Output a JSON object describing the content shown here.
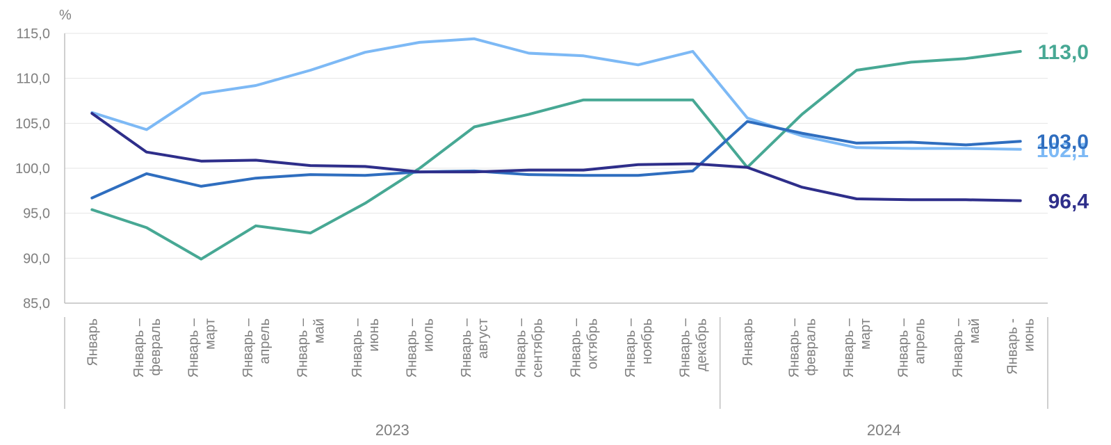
{
  "chart_data": {
    "type": "line",
    "ylabel": "%",
    "ylim": [
      85,
      115
    ],
    "yticks": [
      "85,0",
      "90,0",
      "95,0",
      "100,0",
      "105,0",
      "110,0",
      "115,0"
    ],
    "grid": true,
    "categories": [
      [
        "Январь"
      ],
      [
        "Январь –",
        "февраль"
      ],
      [
        "Январь –",
        "март"
      ],
      [
        "Январь –",
        "апрель"
      ],
      [
        "Январь –",
        "май"
      ],
      [
        "Январь –",
        "июнь"
      ],
      [
        "Январь –",
        "июль"
      ],
      [
        "Январь –",
        "август"
      ],
      [
        "Январь –",
        "сентябрь"
      ],
      [
        "Январь –",
        "октябрь"
      ],
      [
        "Январь –",
        "ноябрь"
      ],
      [
        "Январь –",
        "декабрь"
      ],
      [
        "Январь"
      ],
      [
        "Январь –",
        "февраль"
      ],
      [
        "Январь –",
        "март"
      ],
      [
        "Январь –",
        "апрель"
      ],
      [
        "Январь –",
        "май"
      ],
      [
        "Январь -",
        "июнь"
      ]
    ],
    "groups": [
      {
        "label": "2023",
        "start": 0,
        "end": 11
      },
      {
        "label": "2024",
        "start": 12,
        "end": 17
      }
    ],
    "series": [
      {
        "color": "#7DB9F5",
        "end_label": "102,1",
        "values": [
          106.2,
          104.3,
          108.3,
          109.2,
          110.9,
          112.9,
          114.0,
          114.4,
          112.8,
          112.5,
          111.5,
          113.0,
          105.6,
          103.6,
          102.3,
          102.2,
          102.2,
          102.1
        ]
      },
      {
        "color": "#47A894",
        "end_label": "113,0",
        "values": [
          95.4,
          93.4,
          89.9,
          93.6,
          92.8,
          96.1,
          100.0,
          104.6,
          106.0,
          107.6,
          107.6,
          107.6,
          100.1,
          106.0,
          110.9,
          111.8,
          112.2,
          113.0
        ]
      },
      {
        "color": "#2F6EBF",
        "end_label": "103,0",
        "values": [
          96.7,
          99.4,
          98.0,
          98.9,
          99.3,
          99.2,
          99.6,
          99.7,
          99.3,
          99.2,
          99.2,
          99.7,
          105.2,
          103.9,
          102.8,
          102.9,
          102.6,
          103.0
        ]
      },
      {
        "color": "#2E2E8A",
        "end_label": "96,4",
        "values": [
          106.1,
          101.8,
          100.8,
          100.9,
          100.3,
          100.2,
          99.6,
          99.6,
          99.8,
          99.8,
          100.4,
          100.5,
          100.1,
          97.9,
          96.6,
          96.5,
          96.5,
          96.4
        ]
      }
    ]
  }
}
